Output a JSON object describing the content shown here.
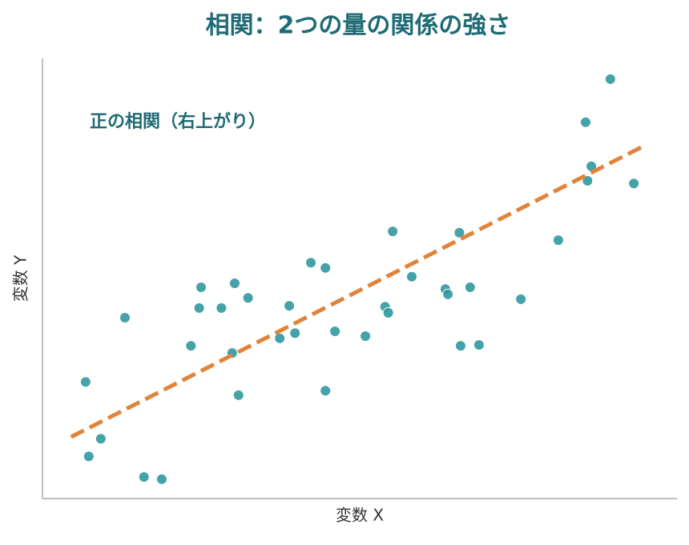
{
  "chart_data": {
    "type": "scatter",
    "title": "相関：2つの量の関係の強さ",
    "annotation": "正の相関（右上がり）",
    "x_label": "変数 X",
    "y_label": "変数 Y",
    "xlim": [
      0,
      10
    ],
    "ylim": [
      0,
      10
    ],
    "grid": false,
    "series": [
      {
        "color": "#2a959d",
        "x": [
          0.68,
          0.73,
          0.92,
          1.3,
          1.6,
          1.88,
          2.34,
          2.47,
          2.5,
          2.82,
          2.99,
          3.03,
          3.09,
          3.24,
          3.74,
          3.89,
          3.98,
          4.23,
          4.46,
          4.46,
          4.61,
          5.09,
          5.4,
          5.45,
          5.52,
          5.82,
          6.35,
          6.39,
          6.57,
          6.59,
          6.74,
          6.88,
          7.54,
          8.13,
          8.56,
          8.59,
          8.65,
          8.95,
          9.32
        ],
        "values": [
          2.65,
          0.96,
          1.36,
          4.11,
          0.49,
          0.44,
          3.47,
          4.33,
          4.8,
          4.33,
          3.31,
          4.89,
          2.35,
          4.56,
          3.64,
          4.38,
          3.76,
          5.36,
          5.24,
          2.45,
          3.8,
          3.69,
          4.36,
          4.22,
          6.07,
          5.04,
          4.76,
          4.64,
          6.04,
          3.47,
          4.8,
          3.49,
          4.53,
          5.87,
          8.55,
          7.22,
          7.55,
          9.53,
          7.16
        ]
      }
    ],
    "trend_line": {
      "color": "#e0843a",
      "x": [
        0.45,
        9.49
      ],
      "values": [
        1.4,
        8.02
      ]
    }
  }
}
